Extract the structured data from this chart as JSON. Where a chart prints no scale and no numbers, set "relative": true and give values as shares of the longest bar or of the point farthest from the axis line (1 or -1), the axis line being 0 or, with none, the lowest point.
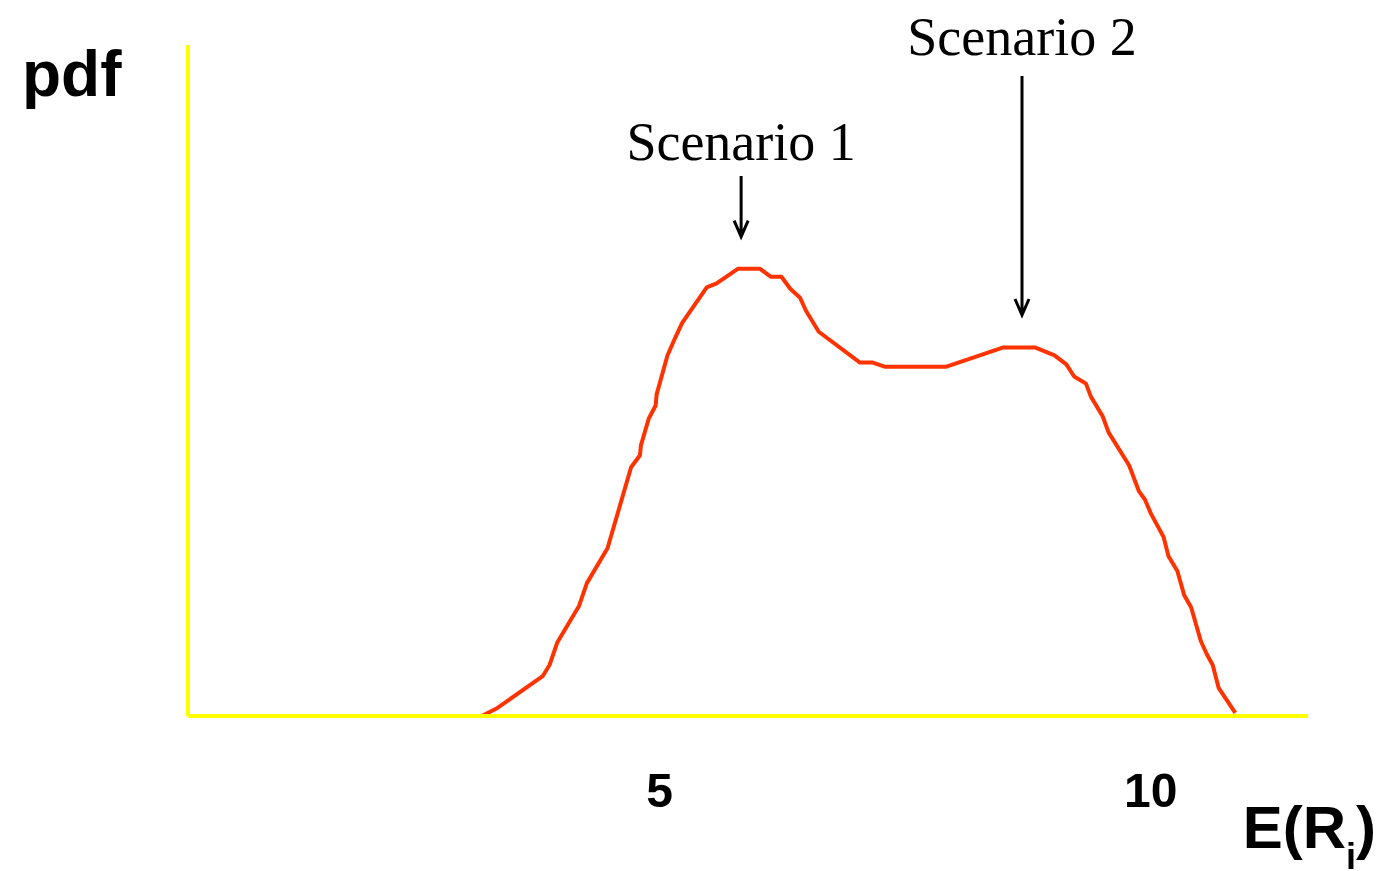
{
  "chart_data": {
    "type": "line",
    "relative": true,
    "xlabel": "E(R$_{i}$)",
    "ylabel": "pdf",
    "xlim": [
      0.2,
      11.6
    ],
    "xticks": [
      5,
      10
    ],
    "marker": "none",
    "line_style": "solid",
    "series": [
      {
        "color": "#ff3300",
        "x": [
          3.19,
          3.35,
          3.81,
          3.88,
          3.96,
          4.18,
          4.26,
          4.47,
          4.71,
          4.8,
          4.81,
          4.89,
          4.96,
          4.97,
          5.08,
          5.16,
          5.23,
          5.48,
          5.58,
          5.8,
          6.02,
          6.13,
          6.24,
          6.33,
          6.43,
          6.49,
          6.62,
          7.04,
          7.17,
          7.29,
          7.92,
          8.5,
          8.82,
          9.02,
          9.14,
          9.22,
          9.34,
          9.39,
          9.51,
          9.57,
          9.78,
          9.88,
          9.94,
          10.0,
          10.13,
          10.18,
          10.27,
          10.34,
          10.41,
          10.51,
          10.57,
          10.63,
          10.69,
          10.86
        ],
        "values": [
          0,
          0.018,
          0.089,
          0.114,
          0.165,
          0.246,
          0.297,
          0.375,
          0.556,
          0.583,
          0.605,
          0.665,
          0.694,
          0.719,
          0.806,
          0.846,
          0.879,
          0.958,
          0.967,
          1.0,
          1.0,
          0.982,
          0.982,
          0.955,
          0.935,
          0.906,
          0.859,
          0.79,
          0.79,
          0.781,
          0.781,
          0.824,
          0.824,
          0.806,
          0.786,
          0.759,
          0.743,
          0.714,
          0.67,
          0.634,
          0.56,
          0.502,
          0.484,
          0.453,
          0.4,
          0.357,
          0.324,
          0.27,
          0.243,
          0.167,
          0.138,
          0.114,
          0.063,
          0.007
        ]
      }
    ],
    "annotations": [
      {
        "text": "Scenario 1",
        "x": 5.83,
        "y": 1.0
      },
      "Scenario 2"
    ]
  }
}
